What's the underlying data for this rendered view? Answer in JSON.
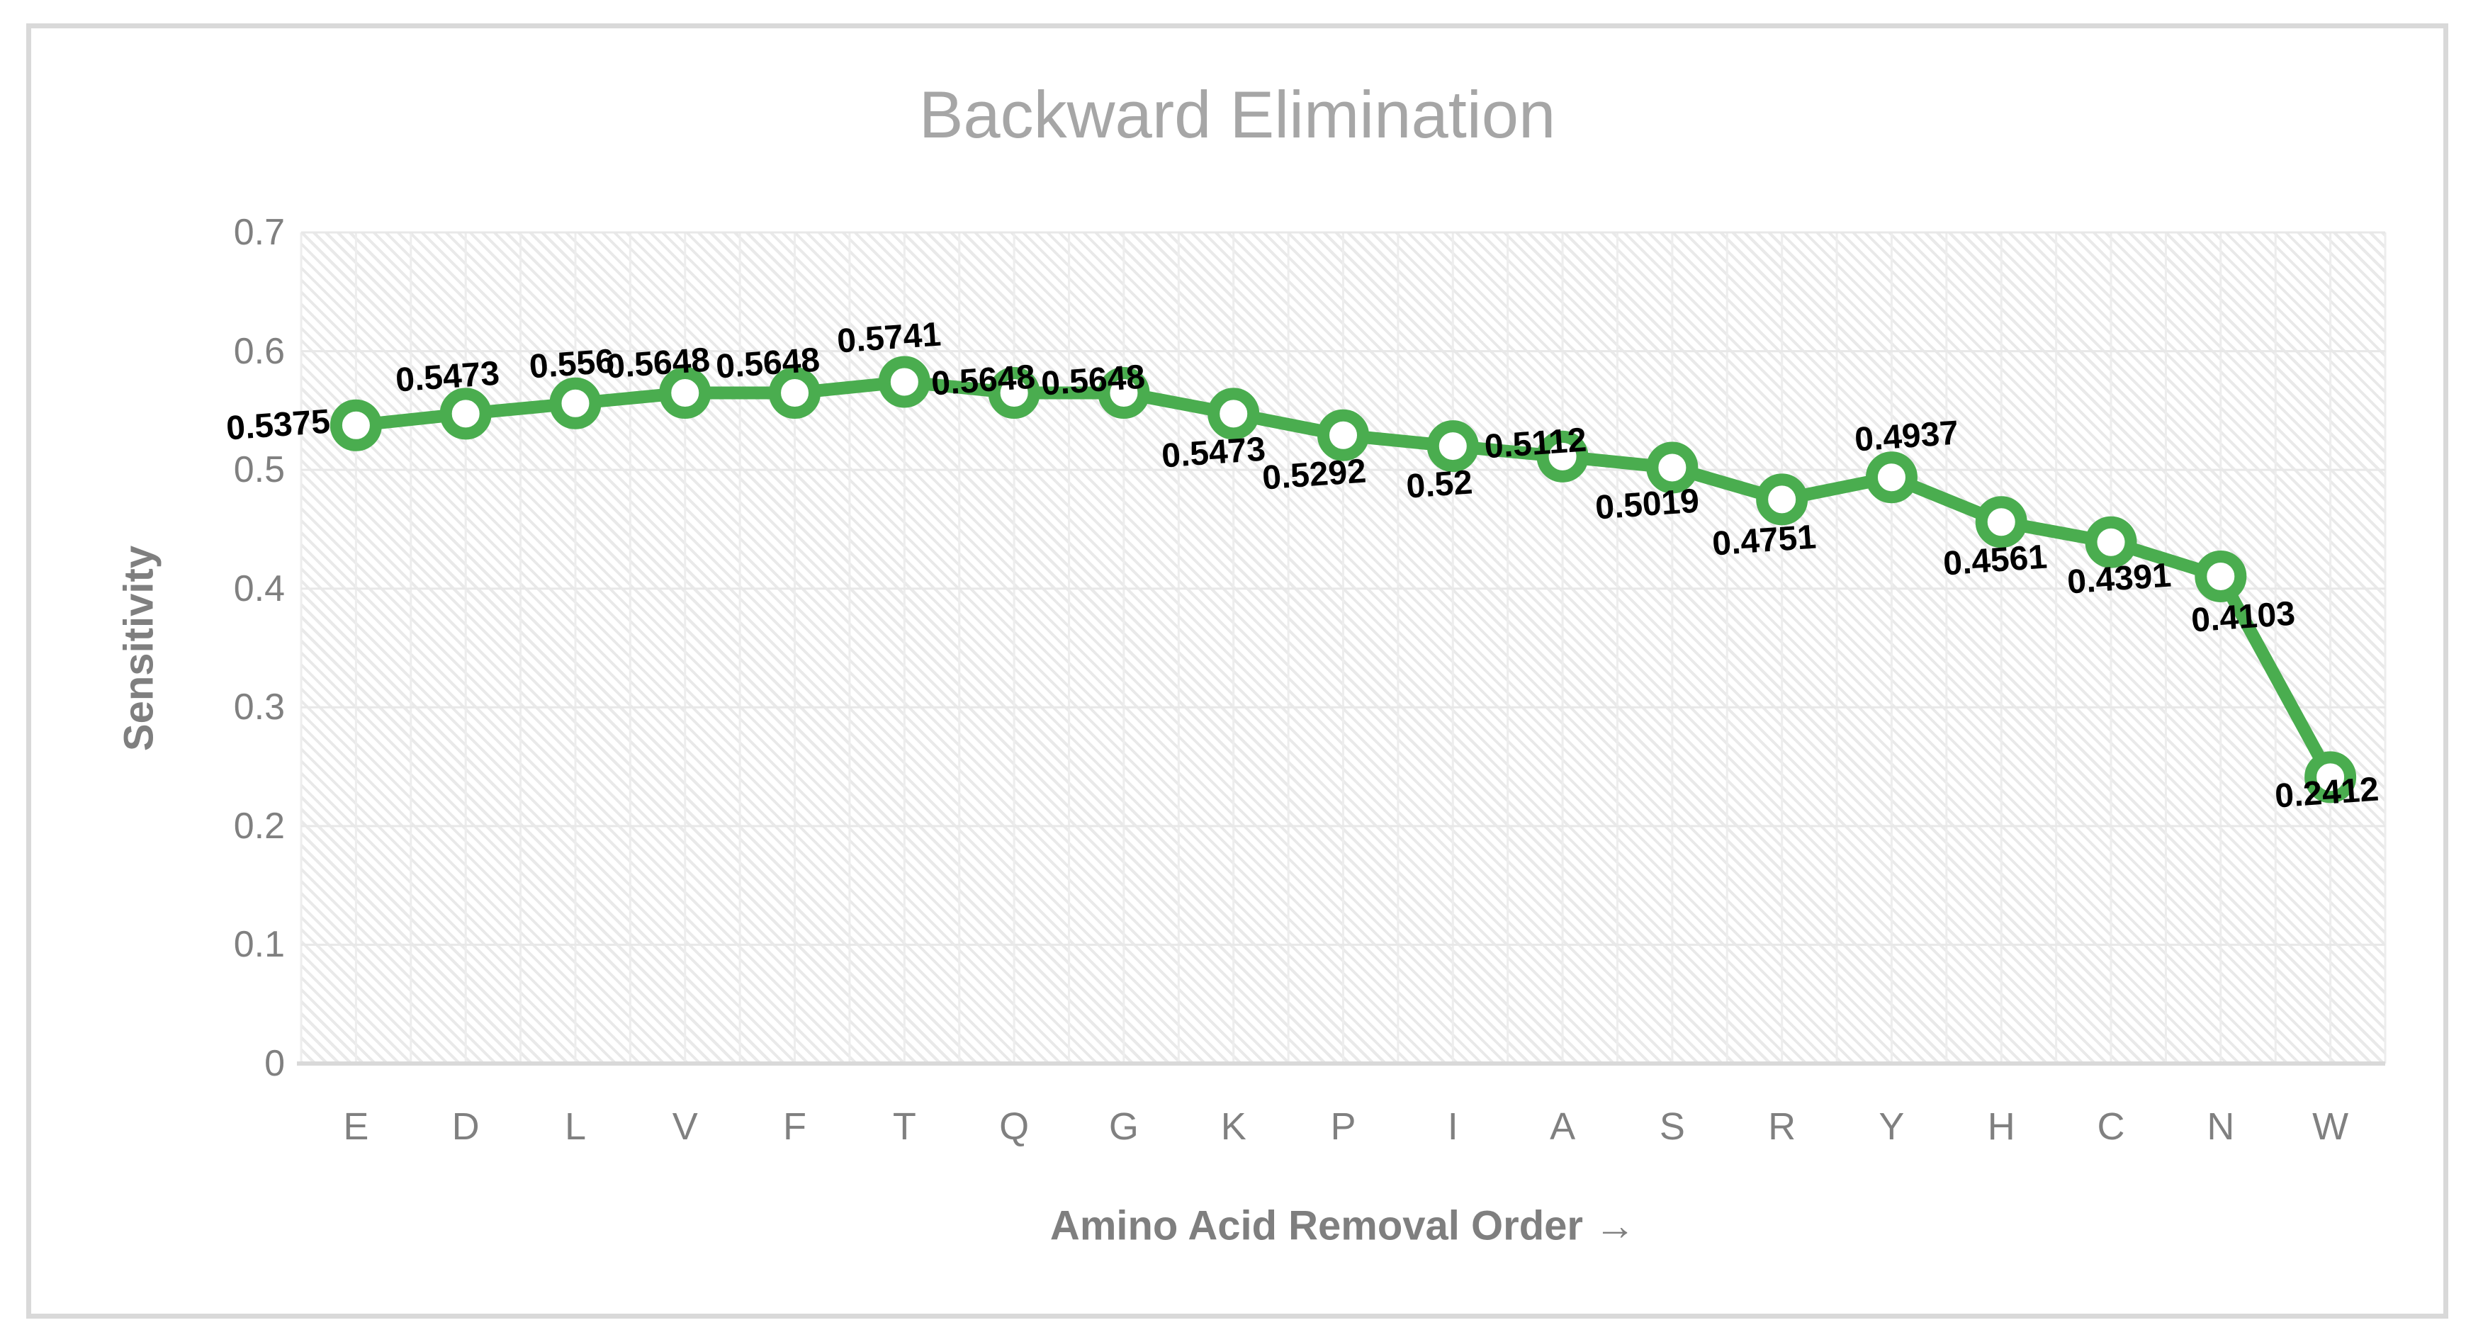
{
  "chart_data": {
    "type": "line",
    "title": "Backward Elimination",
    "xlabel": "Amino Acid Removal Order →",
    "ylabel": "Sensitivity",
    "categories": [
      "E",
      "D",
      "L",
      "V",
      "F",
      "T",
      "Q",
      "G",
      "K",
      "P",
      "I",
      "A",
      "S",
      "R",
      "Y",
      "H",
      "C",
      "N",
      "W"
    ],
    "series": [
      {
        "name": "Sensitivity",
        "values": [
          0.5375,
          0.5473,
          0.556,
          0.5648,
          0.5648,
          0.5741,
          0.5648,
          0.5648,
          0.5473,
          0.5292,
          0.52,
          0.5112,
          0.5019,
          0.4751,
          0.4937,
          0.4561,
          0.4391,
          0.4103,
          0.2412
        ]
      }
    ],
    "data_labels": [
      "0.5375",
      "0.5473",
      "0.556",
      "0.5648",
      "0.5648",
      "0.5741",
      "0.5648",
      "0.5648",
      "0.5473",
      "0.5292",
      "0.52",
      "0.5112",
      "0.5019",
      "0.4751",
      "0.4937",
      "0.4561",
      "0.4391",
      "0.4103",
      "0.2412"
    ],
    "ylim": [
      0,
      0.7
    ],
    "yticks": [
      "0",
      "0.1",
      "0.2",
      "0.3",
      "0.4",
      "0.5",
      "0.6",
      "0.7"
    ],
    "grid": "horizontal major every 0.1; vertical lines every half category; hatched plot fill",
    "legend": "none",
    "colors": {
      "line": "#4AAD4F",
      "marker_fill": "#FFFFFF",
      "title": "#A6A6A6",
      "tick_labels": "#808080",
      "axis_titles": "#7F7F7F",
      "gridline": "#E8E8E8",
      "axis_line": "#D9D9D9",
      "frame_border": "#D9D9D9",
      "data_label": "#000000"
    }
  }
}
